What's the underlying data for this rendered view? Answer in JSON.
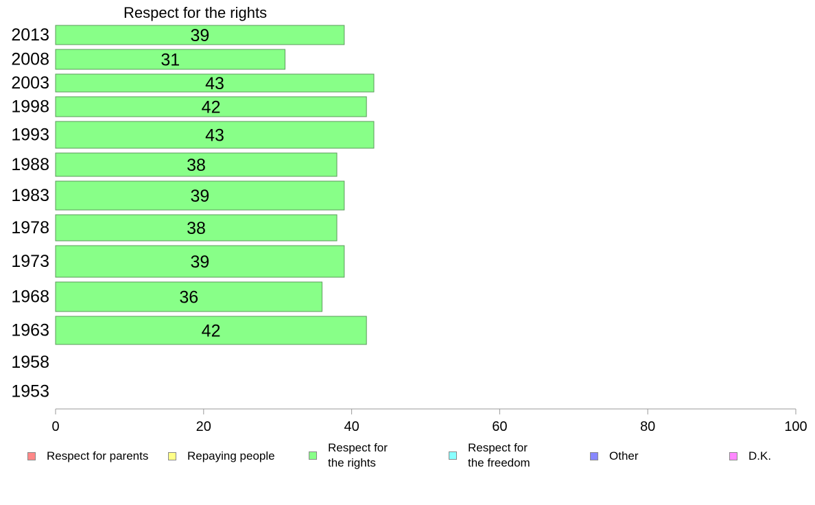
{
  "chart_data": {
    "type": "bar",
    "orientation": "horizontal",
    "title": "Respect for the rights",
    "categories": [
      "2013",
      "2008",
      "2003",
      "1998",
      "1993",
      "1988",
      "1983",
      "1978",
      "1973",
      "1968",
      "1963",
      "1958",
      "1953"
    ],
    "series": [
      {
        "name": "Respect for the rights",
        "color": "#88ff88",
        "values": [
          39,
          31,
          43,
          42,
          43,
          38,
          39,
          38,
          39,
          36,
          42,
          null,
          null
        ]
      }
    ],
    "xlim": [
      0,
      100
    ],
    "xticks": [
      0,
      20,
      40,
      60,
      80,
      100
    ],
    "xlabel": "",
    "ylabel": "",
    "grid": false,
    "legend_position": "bottom",
    "legend": [
      {
        "label": "Respect for parents",
        "color": "#ff8888"
      },
      {
        "label": "Repaying people",
        "color": "#ffff88"
      },
      {
        "label": "Respect for\nthe rights",
        "color": "#88ff88"
      },
      {
        "label": "Respect for\nthe freedom",
        "color": "#88ffff"
      },
      {
        "label": "Other",
        "color": "#8888ff"
      },
      {
        "label": "D.K.",
        "color": "#ff88ff"
      }
    ]
  }
}
